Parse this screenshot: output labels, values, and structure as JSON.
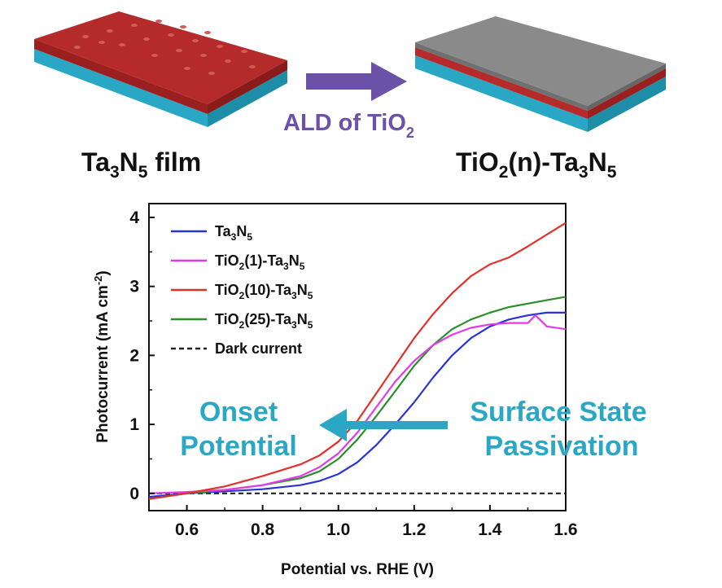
{
  "illustration": {
    "left_film_label": {
      "base": "Ta",
      "sub1": "3",
      "mid": "N",
      "sub2": "5",
      "tail": " film"
    },
    "right_film_label": {
      "pre": "TiO",
      "sub1": "2",
      "mid": "(n)-Ta",
      "sub2": "3",
      "n": "N",
      "sub3": "5"
    },
    "process_arrow_label": {
      "base": "ALD of TiO",
      "sub": "2"
    },
    "colors": {
      "film_red": "#b52a2a",
      "substrate_cyan": "#2aa7c4",
      "tio2_gray": "#8a8a8a",
      "arrow_purple": "#6b52a8"
    }
  },
  "annotations": {
    "onset_line1": "Onset",
    "onset_line2": "Potential",
    "passivation_line1": "Surface State",
    "passivation_line2": "Passivation",
    "color": "#2aa7c4"
  },
  "chart_data": {
    "type": "line",
    "xlabel": "Potential vs. RHE (V)",
    "ylabel": "Photocurrent (mA cm",
    "ylabel_sup": "-2",
    "ylabel_tail": ")",
    "xlim": [
      0.5,
      1.6
    ],
    "ylim": [
      -0.25,
      4.2
    ],
    "xticks": [
      "0.6",
      "0.8",
      "1.0",
      "1.2",
      "1.4",
      "1.6"
    ],
    "yticks": [
      "0",
      "1",
      "2",
      "3",
      "4"
    ],
    "legend_position": "top-left",
    "series": [
      {
        "name": "Ta3N5",
        "legend": {
          "a": "Ta",
          "s1": "3",
          "b": "N",
          "s2": "5",
          "c": ""
        },
        "color": "#2a33d9",
        "dash": false,
        "x": [
          0.5,
          0.6,
          0.7,
          0.8,
          0.9,
          0.95,
          1.0,
          1.05,
          1.1,
          1.15,
          1.2,
          1.25,
          1.3,
          1.35,
          1.4,
          1.45,
          1.5,
          1.55,
          1.6
        ],
        "y": [
          -0.05,
          0.0,
          0.03,
          0.06,
          0.12,
          0.18,
          0.28,
          0.45,
          0.7,
          1.0,
          1.32,
          1.68,
          2.0,
          2.25,
          2.42,
          2.52,
          2.58,
          2.62,
          2.62
        ]
      },
      {
        "name": "TiO2(1)-Ta3N5",
        "legend": {
          "a": "TiO",
          "s1": "2",
          "b": "(1)-Ta",
          "s2": "3",
          "c": "N",
          "s3": "5"
        },
        "color": "#e23ae8",
        "dash": false,
        "x": [
          0.5,
          0.6,
          0.7,
          0.8,
          0.9,
          0.95,
          1.0,
          1.05,
          1.1,
          1.15,
          1.2,
          1.25,
          1.3,
          1.35,
          1.4,
          1.45,
          1.5,
          1.52,
          1.55,
          1.6
        ],
        "y": [
          0.0,
          0.02,
          0.05,
          0.12,
          0.25,
          0.38,
          0.58,
          0.88,
          1.25,
          1.62,
          1.92,
          2.15,
          2.3,
          2.4,
          2.45,
          2.47,
          2.47,
          2.58,
          2.42,
          2.38
        ]
      },
      {
        "name": "TiO2(10)-Ta3N5",
        "legend": {
          "a": "TiO",
          "s1": "2",
          "b": "(10)-Ta",
          "s2": "3",
          "c": "N",
          "s3": "5"
        },
        "color": "#e2302a",
        "dash": false,
        "x": [
          0.5,
          0.6,
          0.7,
          0.8,
          0.9,
          0.95,
          1.0,
          1.05,
          1.1,
          1.15,
          1.2,
          1.25,
          1.3,
          1.35,
          1.4,
          1.45,
          1.5,
          1.55,
          1.6
        ],
        "y": [
          -0.08,
          0.0,
          0.1,
          0.25,
          0.42,
          0.55,
          0.75,
          1.05,
          1.45,
          1.85,
          2.25,
          2.6,
          2.9,
          3.15,
          3.32,
          3.42,
          3.58,
          3.75,
          3.92
        ]
      },
      {
        "name": "TiO2(25)-Ta3N5",
        "legend": {
          "a": "TiO",
          "s1": "2",
          "b": "(25)-Ta",
          "s2": "3",
          "c": "N",
          "s3": "5"
        },
        "color": "#2a8f2a",
        "dash": false,
        "x": [
          0.5,
          0.6,
          0.7,
          0.8,
          0.9,
          0.95,
          1.0,
          1.05,
          1.1,
          1.15,
          1.2,
          1.25,
          1.3,
          1.35,
          1.4,
          1.45,
          1.5,
          1.55,
          1.6
        ],
        "y": [
          -0.08,
          0.0,
          0.05,
          0.12,
          0.22,
          0.32,
          0.5,
          0.78,
          1.12,
          1.48,
          1.85,
          2.15,
          2.38,
          2.52,
          2.62,
          2.7,
          2.75,
          2.8,
          2.85
        ]
      },
      {
        "name": "Dark current",
        "legend": {
          "a": "Dark current",
          "s1": "",
          "b": "",
          "s2": "",
          "c": ""
        },
        "color": "#222222",
        "dash": true,
        "x": [
          0.5,
          1.6
        ],
        "y": [
          0.0,
          0.0
        ]
      }
    ]
  }
}
